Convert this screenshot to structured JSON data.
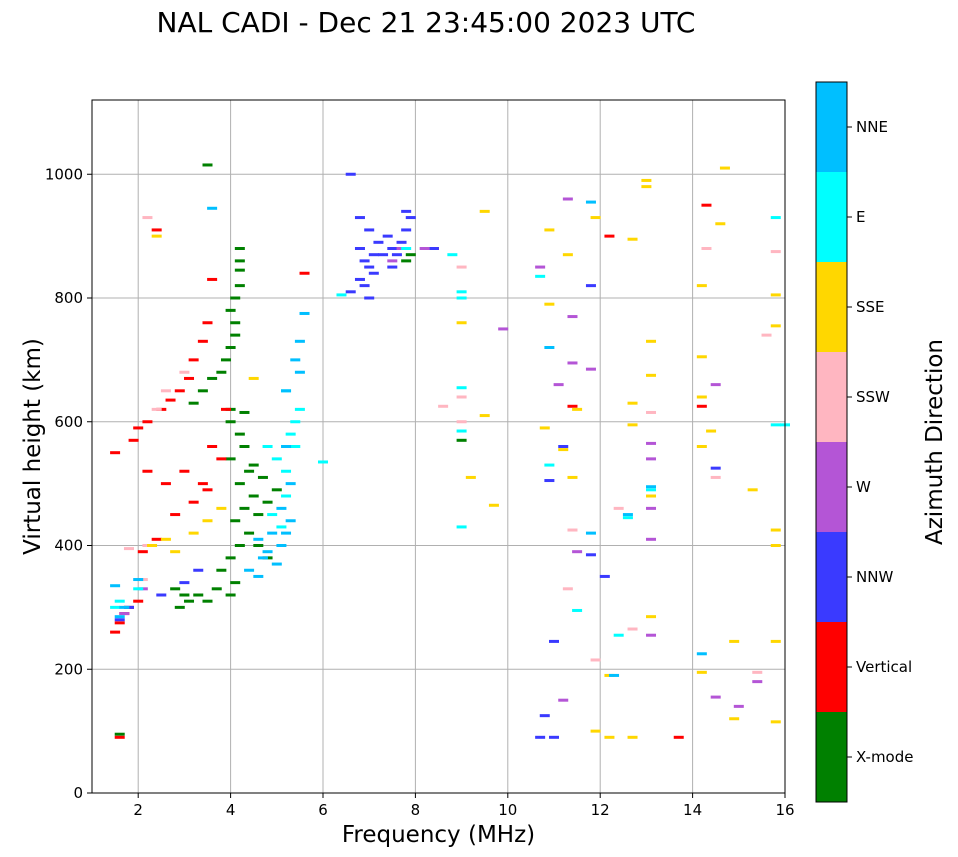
{
  "chart_data": {
    "type": "scatter",
    "title": "NAL CADI - Dec 21 23:45:00 2023 UTC",
    "xlabel": "Frequency (MHz)",
    "ylabel": "Virtual height (km)",
    "xlim": [
      1,
      16
    ],
    "ylim": [
      0,
      1120
    ],
    "xticks": [
      2,
      4,
      6,
      8,
      10,
      12,
      14,
      16
    ],
    "yticks": [
      0,
      200,
      400,
      600,
      800,
      1000
    ],
    "grid": true,
    "colorbar": {
      "label": "Azimuth Direction",
      "categories": [
        {
          "name": "X-mode",
          "color": "#008000"
        },
        {
          "name": "Vertical",
          "color": "#ff0000"
        },
        {
          "name": "NNW",
          "color": "#3a3aff"
        },
        {
          "name": "W",
          "color": "#b455d6"
        },
        {
          "name": "SSW",
          "color": "#ffb6c1"
        },
        {
          "name": "SSE",
          "color": "#ffd700"
        },
        {
          "name": "E",
          "color": "#00ffff"
        },
        {
          "name": "NNE",
          "color": "#00bfff"
        }
      ]
    },
    "series": [
      {
        "name": "X-mode",
        "points": [
          [
            1.6,
            95
          ],
          [
            3.5,
            1015
          ],
          [
            4.2,
            880
          ],
          [
            4.2,
            860
          ],
          [
            4.2,
            845
          ],
          [
            4.2,
            820
          ],
          [
            4.1,
            800
          ],
          [
            4.0,
            780
          ],
          [
            4.1,
            760
          ],
          [
            4.1,
            740
          ],
          [
            4.0,
            720
          ],
          [
            3.9,
            700
          ],
          [
            3.8,
            680
          ],
          [
            3.6,
            670
          ],
          [
            3.4,
            650
          ],
          [
            3.2,
            630
          ],
          [
            4.0,
            620
          ],
          [
            4.3,
            615
          ],
          [
            4.0,
            600
          ],
          [
            4.2,
            580
          ],
          [
            4.3,
            560
          ],
          [
            4.0,
            540
          ],
          [
            4.4,
            520
          ],
          [
            4.2,
            500
          ],
          [
            4.5,
            480
          ],
          [
            4.3,
            460
          ],
          [
            4.1,
            440
          ],
          [
            4.4,
            420
          ],
          [
            4.2,
            400
          ],
          [
            4.0,
            380
          ],
          [
            3.8,
            360
          ],
          [
            4.1,
            340
          ],
          [
            4.0,
            320
          ],
          [
            3.7,
            330
          ],
          [
            3.5,
            310
          ],
          [
            3.3,
            320
          ],
          [
            3.1,
            310
          ],
          [
            2.9,
            300
          ],
          [
            3.0,
            320
          ],
          [
            2.8,
            330
          ],
          [
            4.6,
            450
          ],
          [
            4.8,
            470
          ],
          [
            5.0,
            490
          ],
          [
            4.7,
            510
          ],
          [
            4.5,
            530
          ],
          [
            7.9,
            870
          ],
          [
            7.8,
            860
          ],
          [
            9.0,
            570
          ],
          [
            4.6,
            400
          ],
          [
            4.8,
            380
          ]
        ]
      },
      {
        "name": "Vertical",
        "points": [
          [
            1.6,
            90
          ],
          [
            1.5,
            260
          ],
          [
            1.6,
            275
          ],
          [
            1.7,
            290
          ],
          [
            1.8,
            300
          ],
          [
            2.0,
            310
          ],
          [
            1.5,
            550
          ],
          [
            1.9,
            570
          ],
          [
            2.0,
            590
          ],
          [
            2.2,
            600
          ],
          [
            2.5,
            620
          ],
          [
            2.7,
            635
          ],
          [
            2.9,
            650
          ],
          [
            3.1,
            670
          ],
          [
            3.2,
            700
          ],
          [
            3.4,
            730
          ],
          [
            3.5,
            760
          ],
          [
            2.4,
            910
          ],
          [
            3.6,
            830
          ],
          [
            5.6,
            840
          ],
          [
            2.2,
            520
          ],
          [
            2.6,
            500
          ],
          [
            3.0,
            520
          ],
          [
            3.4,
            500
          ],
          [
            3.6,
            560
          ],
          [
            3.8,
            540
          ],
          [
            2.8,
            450
          ],
          [
            3.2,
            470
          ],
          [
            3.5,
            490
          ],
          [
            2.4,
            410
          ],
          [
            2.1,
            390
          ],
          [
            3.9,
            620
          ],
          [
            11.4,
            625
          ],
          [
            12.2,
            900
          ],
          [
            13.7,
            90
          ],
          [
            14.2,
            625
          ],
          [
            14.3,
            950
          ],
          [
            8.4,
            880
          ]
        ]
      },
      {
        "name": "NNW",
        "points": [
          [
            1.6,
            280
          ],
          [
            1.8,
            300
          ],
          [
            2.5,
            320
          ],
          [
            3.0,
            340
          ],
          [
            3.3,
            360
          ],
          [
            6.6,
            1000
          ],
          [
            6.8,
            930
          ],
          [
            7.0,
            910
          ],
          [
            6.8,
            880
          ],
          [
            6.9,
            860
          ],
          [
            7.0,
            850
          ],
          [
            7.1,
            840
          ],
          [
            6.8,
            830
          ],
          [
            6.9,
            820
          ],
          [
            7.0,
            800
          ],
          [
            6.6,
            810
          ],
          [
            7.4,
            900
          ],
          [
            7.5,
            880
          ],
          [
            7.6,
            870
          ],
          [
            7.7,
            890
          ],
          [
            7.8,
            910
          ],
          [
            7.8,
            940
          ],
          [
            7.9,
            930
          ],
          [
            7.5,
            850
          ],
          [
            7.3,
            870
          ],
          [
            7.2,
            890
          ],
          [
            7.1,
            870
          ],
          [
            8.4,
            880
          ],
          [
            10.7,
            90
          ],
          [
            11.0,
            90
          ],
          [
            10.8,
            125
          ],
          [
            11.0,
            245
          ],
          [
            10.9,
            505
          ],
          [
            11.8,
            385
          ],
          [
            11.8,
            820
          ],
          [
            12.1,
            350
          ],
          [
            14.5,
            525
          ],
          [
            11.2,
            560
          ]
        ]
      },
      {
        "name": "W",
        "points": [
          [
            1.7,
            290
          ],
          [
            2.1,
            330
          ],
          [
            7.7,
            880
          ],
          [
            7.5,
            860
          ],
          [
            8.2,
            880
          ],
          [
            9.9,
            750
          ],
          [
            10.7,
            850
          ],
          [
            11.1,
            660
          ],
          [
            11.4,
            770
          ],
          [
            11.5,
            390
          ],
          [
            11.8,
            685
          ],
          [
            13.1,
            410
          ],
          [
            13.1,
            255
          ],
          [
            13.1,
            540
          ],
          [
            13.1,
            565
          ],
          [
            13.1,
            460
          ],
          [
            14.5,
            660
          ],
          [
            14.5,
            155
          ],
          [
            15.0,
            140
          ],
          [
            15.4,
            180
          ],
          [
            11.2,
            150
          ],
          [
            11.4,
            695
          ],
          [
            11.3,
            960
          ]
        ]
      },
      {
        "name": "SSW",
        "points": [
          [
            1.8,
            395
          ],
          [
            2.1,
            345
          ],
          [
            2.2,
            400
          ],
          [
            2.4,
            620
          ],
          [
            2.6,
            650
          ],
          [
            2.2,
            930
          ],
          [
            3.0,
            680
          ],
          [
            8.6,
            625
          ],
          [
            9.0,
            850
          ],
          [
            9.0,
            640
          ],
          [
            11.3,
            330
          ],
          [
            11.4,
            425
          ],
          [
            11.9,
            215
          ],
          [
            12.4,
            460
          ],
          [
            12.7,
            265
          ],
          [
            13.1,
            615
          ],
          [
            14.3,
            880
          ],
          [
            14.5,
            510
          ],
          [
            15.4,
            195
          ],
          [
            15.8,
            875
          ],
          [
            15.6,
            740
          ],
          [
            9.0,
            600
          ]
        ]
      },
      {
        "name": "SSE",
        "points": [
          [
            2.4,
            900
          ],
          [
            2.3,
            400
          ],
          [
            2.6,
            410
          ],
          [
            2.8,
            390
          ],
          [
            3.2,
            420
          ],
          [
            3.5,
            440
          ],
          [
            3.8,
            460
          ],
          [
            4.5,
            670
          ],
          [
            9.0,
            760
          ],
          [
            9.2,
            510
          ],
          [
            9.5,
            940
          ],
          [
            9.5,
            610
          ],
          [
            9.7,
            465
          ],
          [
            10.8,
            590
          ],
          [
            10.9,
            790
          ],
          [
            10.9,
            910
          ],
          [
            11.2,
            555
          ],
          [
            11.3,
            870
          ],
          [
            11.4,
            510
          ],
          [
            11.5,
            620
          ],
          [
            11.9,
            930
          ],
          [
            11.9,
            100
          ],
          [
            12.2,
            190
          ],
          [
            12.2,
            90
          ],
          [
            12.7,
            595
          ],
          [
            12.7,
            630
          ],
          [
            12.7,
            895
          ],
          [
            12.7,
            90
          ],
          [
            13.0,
            990
          ],
          [
            13.0,
            980
          ],
          [
            13.1,
            730
          ],
          [
            13.1,
            675
          ],
          [
            13.1,
            480
          ],
          [
            13.1,
            285
          ],
          [
            14.2,
            820
          ],
          [
            14.2,
            705
          ],
          [
            14.2,
            640
          ],
          [
            14.2,
            560
          ],
          [
            14.2,
            195
          ],
          [
            14.4,
            585
          ],
          [
            14.6,
            920
          ],
          [
            14.7,
            1010
          ],
          [
            14.9,
            245
          ],
          [
            14.9,
            120
          ],
          [
            15.3,
            490
          ],
          [
            15.8,
            805
          ],
          [
            15.8,
            755
          ],
          [
            15.8,
            425
          ],
          [
            15.8,
            400
          ],
          [
            15.8,
            245
          ],
          [
            15.8,
            115
          ]
        ]
      },
      {
        "name": "E",
        "points": [
          [
            1.5,
            300
          ],
          [
            1.6,
            310
          ],
          [
            2.0,
            330
          ],
          [
            4.8,
            560
          ],
          [
            5.0,
            540
          ],
          [
            5.2,
            520
          ],
          [
            5.3,
            580
          ],
          [
            5.4,
            600
          ],
          [
            5.2,
            480
          ],
          [
            4.9,
            450
          ],
          [
            5.1,
            430
          ],
          [
            5.4,
            560
          ],
          [
            5.5,
            620
          ],
          [
            5.2,
            650
          ],
          [
            6.4,
            805
          ],
          [
            9.0,
            810
          ],
          [
            9.0,
            800
          ],
          [
            9.0,
            655
          ],
          [
            9.0,
            585
          ],
          [
            9.0,
            430
          ],
          [
            6.0,
            535
          ],
          [
            10.7,
            835
          ],
          [
            10.9,
            530
          ],
          [
            11.5,
            295
          ],
          [
            12.4,
            255
          ],
          [
            12.6,
            445
          ],
          [
            13.1,
            490
          ],
          [
            15.8,
            930
          ],
          [
            15.8,
            595
          ],
          [
            16.0,
            595
          ],
          [
            7.8,
            880
          ],
          [
            8.8,
            870
          ]
        ]
      },
      {
        "name": "NNE",
        "points": [
          [
            1.6,
            285
          ],
          [
            1.7,
            300
          ],
          [
            2.0,
            345
          ],
          [
            1.5,
            335
          ],
          [
            4.6,
            410
          ],
          [
            4.8,
            390
          ],
          [
            5.0,
            370
          ],
          [
            5.1,
            400
          ],
          [
            5.2,
            420
          ],
          [
            5.3,
            440
          ],
          [
            5.1,
            460
          ],
          [
            4.9,
            420
          ],
          [
            4.7,
            380
          ],
          [
            5.3,
            500
          ],
          [
            5.2,
            560
          ],
          [
            5.5,
            680
          ],
          [
            5.5,
            730
          ],
          [
            5.4,
            700
          ],
          [
            5.2,
            650
          ],
          [
            5.6,
            775
          ],
          [
            4.4,
            360
          ],
          [
            4.6,
            350
          ],
          [
            11.8,
            955
          ],
          [
            10.9,
            720
          ],
          [
            11.8,
            420
          ],
          [
            12.3,
            190
          ],
          [
            14.2,
            225
          ],
          [
            13.1,
            495
          ],
          [
            12.6,
            450
          ],
          [
            3.6,
            945
          ]
        ]
      }
    ]
  }
}
